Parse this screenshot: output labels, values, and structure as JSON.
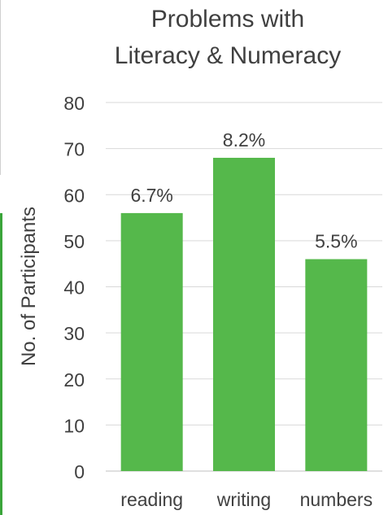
{
  "chart_data": {
    "type": "bar",
    "title": [
      "Problems with",
      "Literacy & Numeracy"
    ],
    "xlabel": "",
    "ylabel": "No. of Participants",
    "categories": [
      "reading",
      "writing",
      "numbers"
    ],
    "values": [
      56,
      68,
      46
    ],
    "data_labels": [
      "6.7%",
      "8.2%",
      "5.5%"
    ],
    "ylim": [
      0,
      80
    ],
    "yticks": [
      "0",
      "10",
      "20",
      "30",
      "40",
      "50",
      "60",
      "70",
      "80"
    ],
    "grid": true,
    "legend": "none",
    "bar_color": "#55b84b"
  }
}
